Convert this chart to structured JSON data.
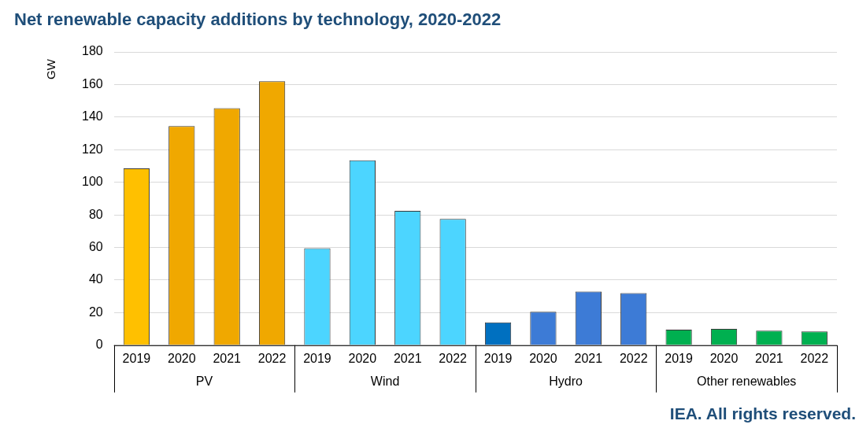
{
  "chart_data": {
    "type": "bar",
    "title": "Net renewable capacity additions by technology, 2020-2022",
    "ylabel": "GW",
    "categories": [
      "2019",
      "2020",
      "2021",
      "2022",
      "2019",
      "2020",
      "2021",
      "2022",
      "2019",
      "2020",
      "2021",
      "2022",
      "2019",
      "2020",
      "2021",
      "2022"
    ],
    "series": [
      {
        "name": "PV",
        "color": "#f0a800",
        "colors": [
          "#ffc000",
          "#f0a800",
          "#f0a800",
          "#f0a800",
          null,
          null,
          null,
          null,
          null,
          null,
          null,
          null,
          null,
          null,
          null,
          null
        ],
        "values": [
          108.5,
          134.5,
          145.5,
          162,
          null,
          null,
          null,
          null,
          null,
          null,
          null,
          null,
          null,
          null,
          null,
          null
        ]
      },
      {
        "name": "Wind",
        "color": "#4cd5ff",
        "values": [
          null,
          null,
          null,
          null,
          59.5,
          113.5,
          82.5,
          77.5,
          null,
          null,
          null,
          null,
          null,
          null,
          null,
          null
        ]
      },
      {
        "name": "Hydro",
        "color": "#3d7bd6",
        "colors": [
          null,
          null,
          null,
          null,
          null,
          null,
          null,
          null,
          "#0070c0",
          "#3d7bd6",
          "#3d7bd6",
          "#3d7bd6",
          null,
          null,
          null,
          null
        ],
        "values": [
          null,
          null,
          null,
          null,
          null,
          null,
          null,
          null,
          14,
          20.5,
          33,
          32,
          null,
          null,
          null,
          null
        ]
      },
      {
        "name": "Other renewables",
        "color": "#00b050",
        "values": [
          null,
          null,
          null,
          null,
          null,
          null,
          null,
          null,
          null,
          null,
          null,
          null,
          9.5,
          10,
          9,
          8.5
        ]
      }
    ],
    "ylim": [
      0,
      180
    ],
    "yticks": [
      0,
      20,
      40,
      60,
      80,
      100,
      120,
      140,
      160,
      180
    ],
    "grid": "y",
    "legend": false,
    "annotations": [
      "IEA. All rights reserved."
    ]
  }
}
